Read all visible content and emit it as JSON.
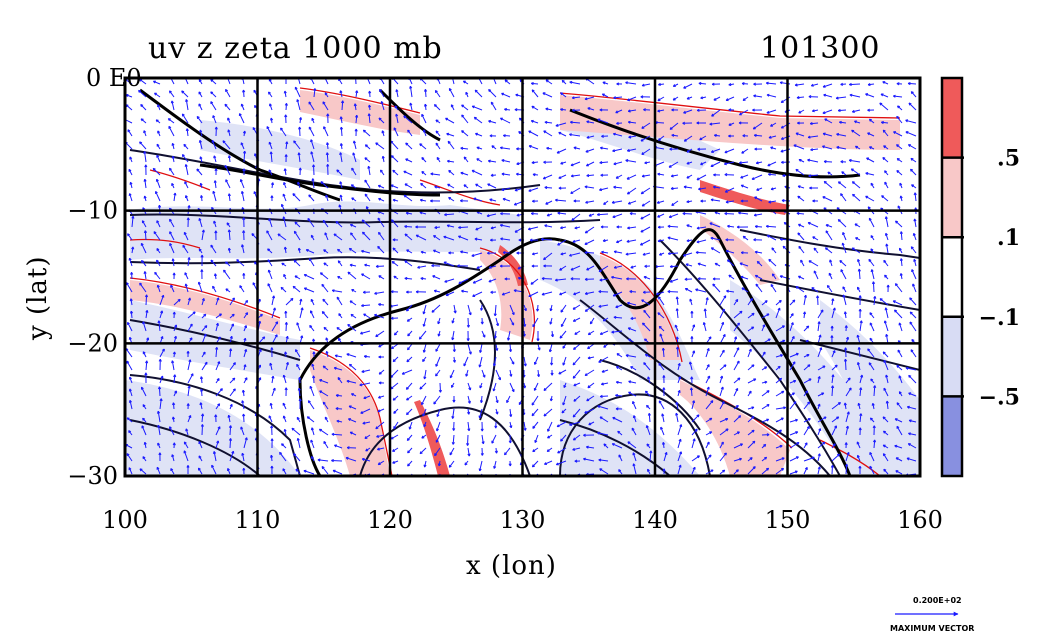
{
  "title": "uv z zeta 1000 mb",
  "time_label": "101300",
  "corner_label": "0 E0",
  "xlabel": "x (lon)",
  "ylabel": "y (lat)",
  "x_ticks": [
    "100",
    "110",
    "120",
    "130",
    "140",
    "150",
    "160"
  ],
  "y_ticks": [
    "−10",
    "−20",
    "−30"
  ],
  "x_range": [
    100,
    160
  ],
  "y_range": [
    -30,
    0
  ],
  "colorbar": {
    "levels": [
      {
        "color": "#ef5a5a",
        "label": ""
      },
      {
        "color": "#f8c8c8",
        "label": ".5"
      },
      {
        "color": "#ffffff",
        "label": ".1"
      },
      {
        "color": "#d8dcf4",
        "label": "−.1"
      },
      {
        "color": "#8890e0",
        "label": "−.5"
      }
    ]
  },
  "vector_key": {
    "value": "0.200E+02",
    "caption": "MAXIMUM VECTOR"
  },
  "colors": {
    "vector": "#1a1aff",
    "positive_contour": "#e01010",
    "negative_fill": "#dfe3f6",
    "geopotential_contour": "#101030"
  }
}
